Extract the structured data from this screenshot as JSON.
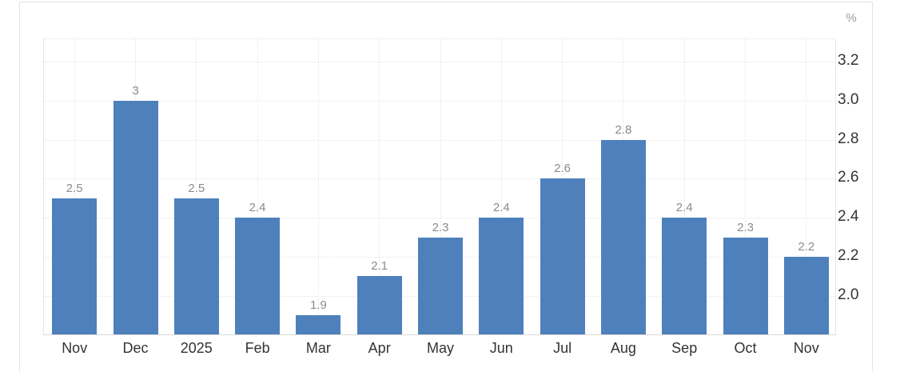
{
  "chart_data": {
    "type": "bar",
    "title": "",
    "xlabel": "",
    "ylabel": "%",
    "categories": [
      "Nov",
      "Dec",
      "2025",
      "Feb",
      "Mar",
      "Apr",
      "May",
      "Jun",
      "Jul",
      "Aug",
      "Sep",
      "Oct",
      "Nov"
    ],
    "values": [
      2.5,
      3,
      2.5,
      2.4,
      1.9,
      2.1,
      2.3,
      2.4,
      2.6,
      2.8,
      2.4,
      2.3,
      2.2
    ],
    "value_labels": [
      "2.5",
      "3",
      "2.5",
      "2.4",
      "1.9",
      "2.1",
      "2.3",
      "2.4",
      "2.6",
      "2.8",
      "2.4",
      "2.3",
      "2.2"
    ],
    "y_ticks": [
      3.2,
      3.0,
      2.8,
      2.6,
      2.4,
      2.2,
      2.0
    ],
    "y_tick_labels": [
      "3.2",
      "3.0",
      "2.8",
      "2.6",
      "2.4",
      "2.2",
      "2.0"
    ],
    "ylim": [
      1.78,
      3.32
    ],
    "grid": true,
    "legend": false,
    "colors": {
      "bar": "#4e80bc",
      "grid": "#e6e6e6",
      "axis_line": "#d8d8d8",
      "axis_label": "#333333",
      "value_label": "#8b8b8b",
      "unit_label": "#999999",
      "card_border": "#e3e3e3",
      "background": "#ffffff"
    }
  }
}
